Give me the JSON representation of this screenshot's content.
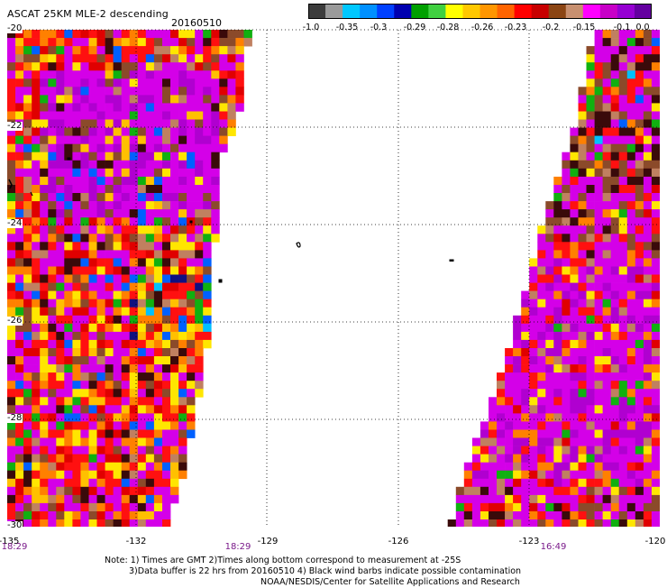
{
  "header": {
    "title": "ASCAT 25KM MLE-2 descending",
    "date": "20160510"
  },
  "colorbar": {
    "colors": [
      "#3c3c3c",
      "#9a9a9a",
      "#00c8ff",
      "#0090ff",
      "#0040ff",
      "#0000b0",
      "#00a000",
      "#40d040",
      "#ffff00",
      "#ffc800",
      "#ff9600",
      "#ff6400",
      "#ff0000",
      "#c80000",
      "#8b4513",
      "#c89070",
      "#ff00ff",
      "#c800c8",
      "#9600d2",
      "#6400a0"
    ],
    "labels": [
      "-1.0",
      "-0.35",
      "-0.3",
      "-0.29",
      "-0.28",
      "-0.26",
      "-0.23",
      "-0.2",
      "-0.15",
      "-0.1",
      "0.0"
    ]
  },
  "axes": {
    "y_labels": [
      "-20",
      "-22",
      "-24",
      "-26",
      "-28",
      "-30"
    ],
    "x_labels": [
      "-135",
      "-132",
      "-129",
      "-126",
      "-123",
      "-120"
    ],
    "time_labels": [
      "18:29",
      "18:29",
      "16:49"
    ],
    "x_range": [
      -135,
      -120
    ],
    "y_range": [
      -30,
      -20
    ],
    "grid": "dotted"
  },
  "swaths": {
    "pass_1_time": "18:29",
    "pass_2_time": "16:49"
  },
  "notes": {
    "line1": "Note: 1) Times are GMT 2)Times along bottom correspond to measurement at -25S",
    "line2": "3)Data buffer is 22 hrs from 20160510 4) Black wind barbs indicate possible contamination",
    "line3": "NOAA/NESDIS/Center for Satellite Applications and Research"
  }
}
